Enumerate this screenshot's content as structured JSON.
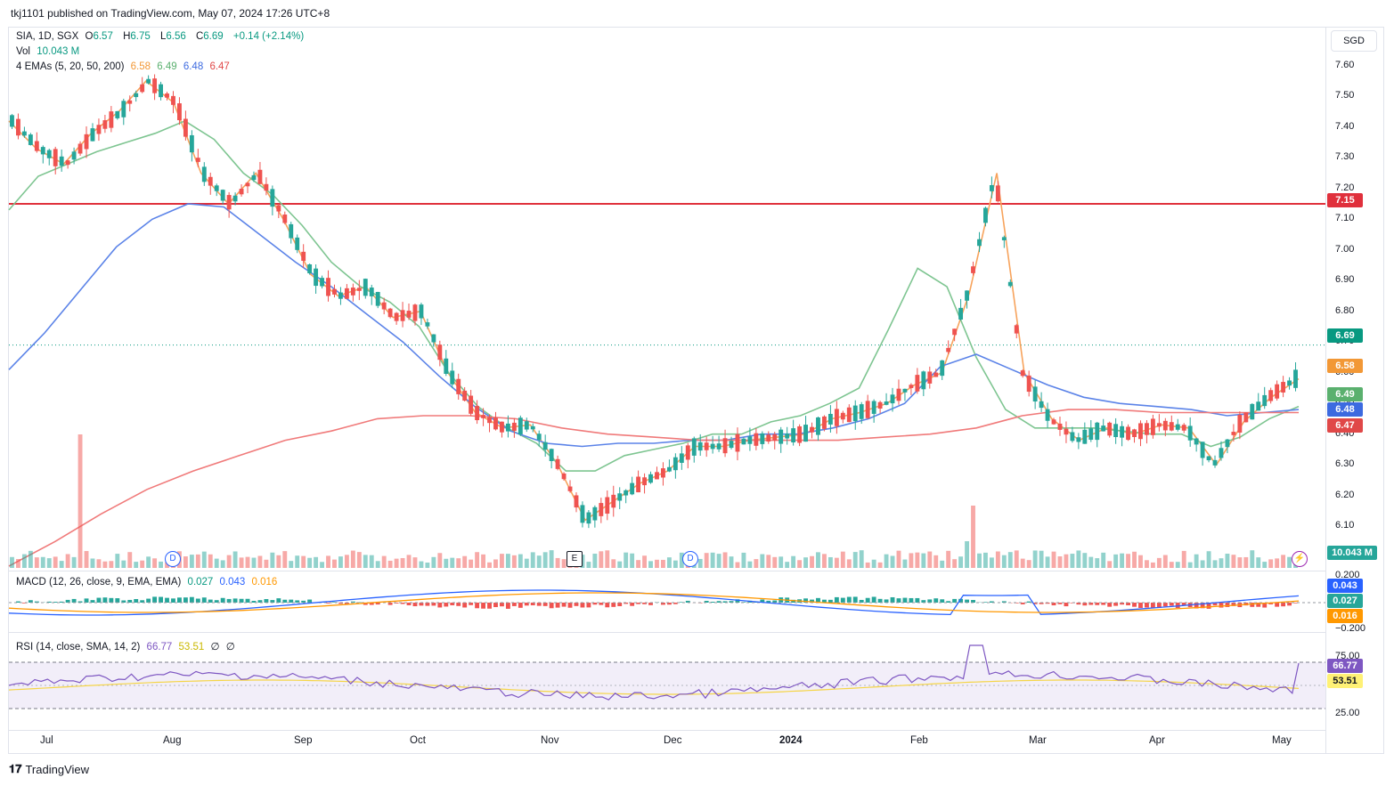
{
  "publisher": "tkj1101 published on TradingView.com, May 07, 2024 17:26 UTC+8",
  "currency": "SGD",
  "legend": {
    "symbol": "SIA, 1D, SGX",
    "open_label": "O",
    "open": "6.57",
    "high_label": "H",
    "high": "6.75",
    "low_label": "L",
    "low": "6.56",
    "close_label": "C",
    "close": "6.69",
    "change": "+0.14 (+2.14%)",
    "vol_label": "Vol",
    "vol": "10.043 M",
    "ema_label": "4 EMAs (5, 20, 50, 200)",
    "ema5": "6.58",
    "ema20": "6.49",
    "ema50": "6.48",
    "ema200": "6.47",
    "macd_label": "MACD (12, 26, close, 9, EMA, EMA)",
    "macd_hist": "0.027",
    "macd": "0.043",
    "macd_signal": "0.016",
    "rsi_label": "RSI (14, close, SMA, 14, 2)",
    "rsi": "66.77",
    "rsi_ma": "53.51",
    "rsi_extra1": "∅",
    "rsi_extra2": "∅"
  },
  "price_axis": [
    "7.60",
    "7.50",
    "7.40",
    "7.30",
    "7.20",
    "7.10",
    "7.00",
    "6.90",
    "6.80",
    "6.70",
    "6.60",
    "6.50",
    "6.40",
    "6.30",
    "6.20",
    "6.10",
    "6.00"
  ],
  "price_tags": {
    "resistance": "7.15",
    "last": "6.69",
    "ema5": "6.58",
    "ema20": "6.49",
    "ema50": "6.48",
    "ema200": "6.47",
    "volume": "10.043 M",
    "macd": "0.043",
    "macd_hist": "0.027",
    "macd_signal": "0.016",
    "rsi": "66.77",
    "rsi_ma": "53.51"
  },
  "macd_axis": [
    "0.200",
    "−0.200"
  ],
  "rsi_axis": [
    "75.00",
    "25.00"
  ],
  "time_axis": [
    "Jul",
    "Aug",
    "Sep",
    "Oct",
    "Nov",
    "Dec",
    "2024",
    "Feb",
    "Mar",
    "Apr",
    "May"
  ],
  "events": [
    "D",
    "E",
    "D"
  ],
  "footer_logo": "TradingView",
  "colors": {
    "up": "#26a69a",
    "down": "#ef5350",
    "ema5": "#f7a35c",
    "ema20": "#7ec591",
    "ema50": "#5b83e8",
    "ema200": "#f07a7a",
    "resistance": "#e0303c",
    "macd": "#2962ff",
    "signal": "#ff9800"
  },
  "chart_data": {
    "type": "candlestick",
    "title": "SIA, 1D, SGX",
    "ylabel": "SGD",
    "ylim": [
      5.97,
      7.64
    ],
    "resistance_level": 7.15,
    "series": [
      {
        "name": "EMA 5",
        "values": [
          7.42,
          7.33,
          7.28,
          7.38,
          7.45,
          7.55,
          7.48,
          7.25,
          7.15,
          7.25,
          7.1,
          6.92,
          6.85,
          6.88,
          6.78,
          6.8,
          6.6,
          6.47,
          6.42,
          6.43,
          6.3,
          6.12,
          6.18,
          6.24,
          6.28,
          6.36,
          6.36,
          6.38,
          6.39,
          6.4,
          6.45,
          6.47,
          6.5,
          6.56,
          6.6,
          6.86,
          7.25,
          6.6,
          6.45,
          6.38,
          6.42,
          6.4,
          6.43,
          6.42,
          6.3,
          6.44,
          6.52,
          6.58
        ]
      },
      {
        "name": "EMA 20",
        "values": [
          7.13,
          7.24,
          7.28,
          7.32,
          7.35,
          7.38,
          7.42,
          7.36,
          7.25,
          7.18,
          7.08,
          6.96,
          6.88,
          6.83,
          6.75,
          6.6,
          6.49,
          6.42,
          6.37,
          6.28,
          6.28,
          6.33,
          6.35,
          6.37,
          6.4,
          6.4,
          6.44,
          6.46,
          6.5,
          6.55,
          6.74,
          6.94,
          6.88,
          6.65,
          6.48,
          6.42,
          6.42,
          6.42,
          6.41,
          6.4,
          6.4,
          6.36,
          6.39,
          6.45,
          6.49
        ]
      },
      {
        "name": "EMA 50",
        "values": [
          6.61,
          6.73,
          6.87,
          7.01,
          7.1,
          7.15,
          7.14,
          7.05,
          6.96,
          6.88,
          6.79,
          6.7,
          6.59,
          6.49,
          6.41,
          6.37,
          6.36,
          6.37,
          6.37,
          6.38,
          6.38,
          6.4,
          6.4,
          6.42,
          6.45,
          6.5,
          6.62,
          6.66,
          6.61,
          6.56,
          6.52,
          6.5,
          6.49,
          6.48,
          6.46,
          6.47,
          6.48
        ]
      },
      {
        "name": "EMA 200",
        "values": [
          5.97,
          6.05,
          6.14,
          6.22,
          6.28,
          6.33,
          6.38,
          6.41,
          6.45,
          6.46,
          6.46,
          6.45,
          6.42,
          6.4,
          6.39,
          6.38,
          6.38,
          6.38,
          6.38,
          6.39,
          6.4,
          6.42,
          6.46,
          6.48,
          6.48,
          6.47,
          6.47,
          6.47,
          6.47
        ]
      }
    ],
    "macd_ylim": [
      -0.25,
      0.25
    ],
    "rsi_ylim": [
      10,
      90
    ],
    "rsi_levels": [
      75,
      25
    ]
  }
}
